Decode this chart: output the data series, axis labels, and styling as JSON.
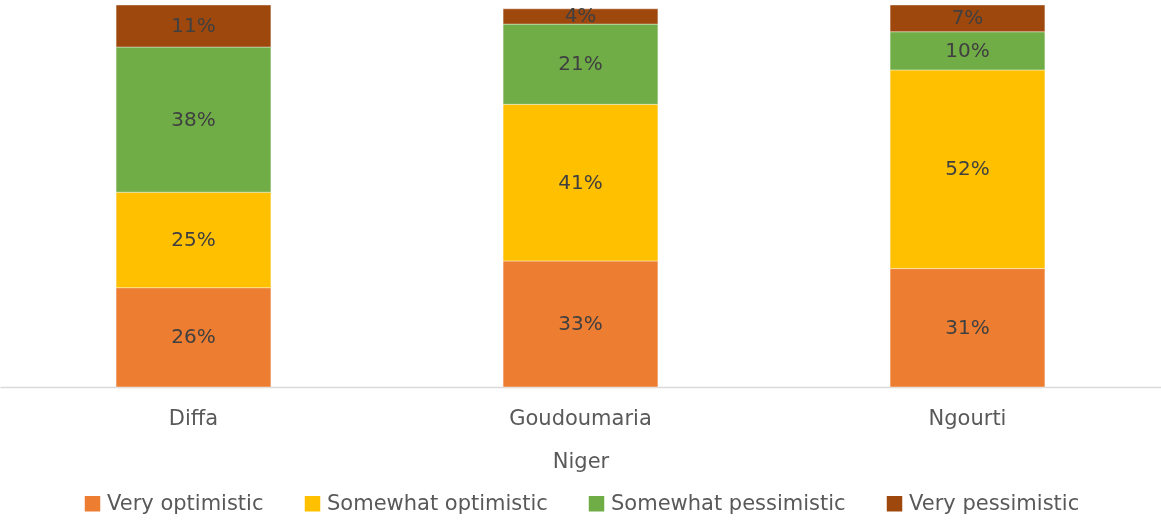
{
  "chart_data": {
    "type": "bar",
    "stacked": true,
    "legend": "bottom",
    "xlabel": "Niger",
    "categories": [
      "Diffa",
      "Goudoumaria",
      "Ngourti"
    ],
    "series": [
      {
        "name": "Very optimistic",
        "color": "#ed7d31",
        "values": [
          26,
          33,
          31
        ],
        "value_labels": [
          "26%",
          "33%",
          "31%"
        ]
      },
      {
        "name": "Somewhat optimistic",
        "color": "#ffc000",
        "values": [
          25,
          41,
          52
        ],
        "value_labels": [
          "25%",
          "41%",
          "52%"
        ]
      },
      {
        "name": "Somewhat pessimistic",
        "color": "#70ad47",
        "values": [
          38,
          21,
          10
        ],
        "value_labels": [
          "38%",
          "21%",
          "10%"
        ]
      },
      {
        "name": "Very pessimistic",
        "color": "#9e480e",
        "values": [
          11,
          4,
          7
        ],
        "value_labels": [
          "11%",
          "4%",
          "7%"
        ]
      }
    ]
  }
}
